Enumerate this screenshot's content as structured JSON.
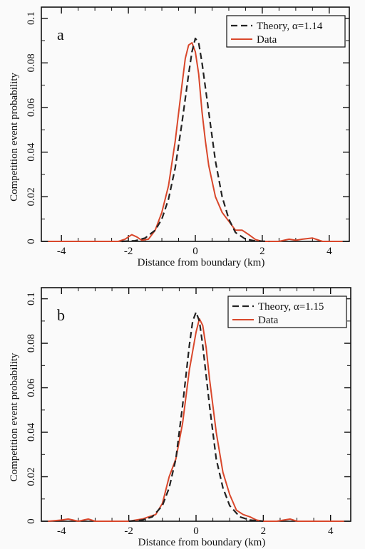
{
  "chart_data": [
    {
      "type": "line",
      "panel_label": "a",
      "xlabel": "Distance from boundary (km)",
      "ylabel": "Competition event probability",
      "xlim": [
        -4.6,
        4.6
      ],
      "ylim": [
        0,
        0.105
      ],
      "xticks": [
        -4,
        -2,
        0,
        2,
        4
      ],
      "xtick_labels": [
        "-4",
        "-2",
        "0",
        "2",
        "4"
      ],
      "yticks": [
        0,
        0.02,
        0.04,
        0.06,
        0.08,
        0.1
      ],
      "ytick_labels": [
        "0",
        "0.02",
        "0.04",
        "0.06",
        "0.08",
        "0.1"
      ],
      "legend_position": "top-right",
      "series": [
        {
          "name": "Theory, α=1.14",
          "style": "dashed",
          "color": "#222222",
          "x": [
            -2.2,
            -1.8,
            -1.5,
            -1.2,
            -1.0,
            -0.8,
            -0.6,
            -0.4,
            -0.2,
            -0.1,
            0.0,
            0.1,
            0.2,
            0.4,
            0.6,
            0.8,
            1.0,
            1.2,
            1.5,
            1.8,
            2.2
          ],
          "y": [
            0.0,
            0.0003,
            0.0015,
            0.005,
            0.01,
            0.019,
            0.033,
            0.053,
            0.075,
            0.085,
            0.091,
            0.089,
            0.08,
            0.058,
            0.036,
            0.02,
            0.01,
            0.004,
            0.001,
            0.0002,
            0.0
          ]
        },
        {
          "name": "Data",
          "style": "solid",
          "color": "#d9472b",
          "x": [
            -4.4,
            -2.3,
            -2.1,
            -1.9,
            -1.75,
            -1.6,
            -1.4,
            -1.2,
            -1.0,
            -0.8,
            -0.6,
            -0.4,
            -0.3,
            -0.2,
            -0.1,
            0.0,
            0.1,
            0.2,
            0.3,
            0.4,
            0.6,
            0.8,
            1.0,
            1.2,
            1.4,
            1.6,
            1.8,
            2.0,
            2.5,
            2.8,
            3.0,
            3.2,
            3.5,
            3.8,
            4.4
          ],
          "y": [
            0.0,
            0.0,
            0.001,
            0.003,
            0.002,
            0.0005,
            0.001,
            0.005,
            0.013,
            0.025,
            0.045,
            0.07,
            0.082,
            0.088,
            0.089,
            0.085,
            0.075,
            0.058,
            0.045,
            0.034,
            0.02,
            0.013,
            0.009,
            0.005,
            0.005,
            0.003,
            0.0008,
            0.0,
            0.0,
            0.001,
            0.0005,
            0.001,
            0.0015,
            0.0,
            0.0
          ]
        }
      ]
    },
    {
      "type": "line",
      "panel_label": "b",
      "xlabel": "Distance from boundary (km)",
      "ylabel": "Competition event probability",
      "xlim": [
        -4.6,
        4.6
      ],
      "ylim": [
        0,
        0.105
      ],
      "xticks": [
        -4,
        -2,
        0,
        2,
        4
      ],
      "xtick_labels": [
        "-4",
        "-2",
        "0",
        "2",
        "4"
      ],
      "yticks": [
        0,
        0.02,
        0.04,
        0.06,
        0.08,
        0.1
      ],
      "ytick_labels": [
        "0",
        "0.02",
        "0.04",
        "0.06",
        "0.08",
        "0.1"
      ],
      "legend_position": "top-right",
      "series": [
        {
          "name": "Theory, α=1.15",
          "style": "dashed",
          "color": "#222222",
          "x": [
            -2.0,
            -1.6,
            -1.3,
            -1.0,
            -0.8,
            -0.6,
            -0.4,
            -0.2,
            -0.1,
            0.0,
            0.1,
            0.2,
            0.4,
            0.6,
            0.8,
            1.0,
            1.3,
            1.6,
            2.0
          ],
          "y": [
            0.0,
            0.0005,
            0.002,
            0.007,
            0.015,
            0.028,
            0.052,
            0.079,
            0.09,
            0.094,
            0.09,
            0.079,
            0.052,
            0.028,
            0.015,
            0.007,
            0.002,
            0.0005,
            0.0
          ]
        },
        {
          "name": "Data",
          "style": "solid",
          "color": "#d9472b",
          "x": [
            -4.4,
            -4.0,
            -3.8,
            -3.5,
            -3.2,
            -3.0,
            -2.0,
            -1.6,
            -1.2,
            -1.0,
            -0.8,
            -0.6,
            -0.4,
            -0.2,
            0.0,
            0.1,
            0.2,
            0.3,
            0.4,
            0.6,
            0.8,
            1.0,
            1.2,
            1.4,
            1.6,
            1.8,
            2.0,
            2.4,
            2.8,
            3.0,
            4.4
          ],
          "y": [
            0.0,
            0.0005,
            0.001,
            0.0,
            0.001,
            0.0,
            0.0,
            0.001,
            0.003,
            0.008,
            0.02,
            0.028,
            0.044,
            0.068,
            0.085,
            0.091,
            0.088,
            0.078,
            0.064,
            0.04,
            0.022,
            0.012,
            0.005,
            0.003,
            0.002,
            0.0005,
            0.0,
            0.0,
            0.001,
            0.0,
            0.0
          ]
        }
      ]
    }
  ]
}
